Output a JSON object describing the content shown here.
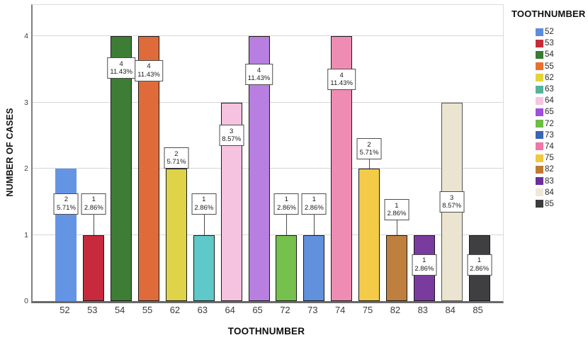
{
  "chart_data": {
    "type": "bar",
    "title": "",
    "xlabel": "TOOTHNUMBER",
    "ylabel": "NUMBER OF CASES",
    "ylim": [
      0,
      4.47
    ],
    "yticks": [
      "0",
      "1",
      "2",
      "3",
      "4"
    ],
    "grid": true,
    "legend": {
      "title": "TOOTHNUMBER",
      "position": "right"
    },
    "categories": [
      "52",
      "53",
      "54",
      "55",
      "62",
      "63",
      "64",
      "65",
      "72",
      "73",
      "74",
      "75",
      "82",
      "83",
      "84",
      "85"
    ],
    "values": [
      2,
      1,
      4,
      4,
      2,
      1,
      3,
      4,
      1,
      1,
      4,
      2,
      1,
      1,
      3,
      1
    ],
    "bars": [
      {
        "tooth": "52",
        "cases": 2,
        "count_label": "2",
        "percent_label": "5.71%",
        "bar_color": "#6494E4",
        "border_color": "#6494E4",
        "legend_color": "#5C8CE0",
        "label_y": 1.47
      },
      {
        "tooth": "53",
        "cases": 1,
        "count_label": "1",
        "percent_label": "2.86%",
        "bar_color": "#C62A3C",
        "border_color": "#1a1a1a",
        "legend_color": "#C62A3B",
        "label_y": 1.47
      },
      {
        "tooth": "54",
        "cases": 4,
        "count_label": "4",
        "percent_label": "11.43%",
        "bar_color": "#3E7D36",
        "border_color": "#1a1a1a",
        "legend_color": "#3B7A33",
        "label_y": 3.52
      },
      {
        "tooth": "55",
        "cases": 4,
        "count_label": "4",
        "percent_label": "11.43%",
        "bar_color": "#E06B3A",
        "border_color": "#1a1a1a",
        "legend_color": "#E8702E",
        "label_y": 3.48
      },
      {
        "tooth": "62",
        "cases": 2,
        "count_label": "2",
        "percent_label": "5.71%",
        "bar_color": "#DFD34A",
        "border_color": "#1a1a1a",
        "legend_color": "#E5D33A",
        "label_y": 2.16
      },
      {
        "tooth": "63",
        "cases": 1,
        "count_label": "1",
        "percent_label": "2.86%",
        "bar_color": "#5FC8C8",
        "border_color": "#1a1a1a",
        "legend_color": "#55B39C",
        "label_y": 1.47
      },
      {
        "tooth": "64",
        "cases": 3,
        "count_label": "3",
        "percent_label": "8.57%",
        "bar_color": "#F5C2DF",
        "border_color": "#1a1a1a",
        "legend_color": "#F6C6E0",
        "label_y": 2.5
      },
      {
        "tooth": "65",
        "cases": 4,
        "count_label": "4",
        "percent_label": "11.43%",
        "bar_color": "#B87FE0",
        "border_color": "#1a1a1a",
        "legend_color": "#A14DE0",
        "label_y": 3.42
      },
      {
        "tooth": "72",
        "cases": 1,
        "count_label": "1",
        "percent_label": "2.86%",
        "bar_color": "#76C04E",
        "border_color": "#1a1a1a",
        "legend_color": "#6CBE44",
        "label_y": 1.47
      },
      {
        "tooth": "73",
        "cases": 1,
        "count_label": "1",
        "percent_label": "2.86%",
        "bar_color": "#6190DC",
        "border_color": "#1a1a1a",
        "legend_color": "#3C64B4",
        "label_y": 1.47
      },
      {
        "tooth": "74",
        "cases": 4,
        "count_label": "4",
        "percent_label": "11.43%",
        "bar_color": "#EF8CB4",
        "border_color": "#1a1a1a",
        "legend_color": "#F075A8",
        "label_y": 3.35
      },
      {
        "tooth": "75",
        "cases": 2,
        "count_label": "2",
        "percent_label": "5.71%",
        "bar_color": "#F4CB48",
        "border_color": "#1a1a1a",
        "legend_color": "#F2C83C",
        "label_y": 2.3
      },
      {
        "tooth": "82",
        "cases": 1,
        "count_label": "1",
        "percent_label": "2.86%",
        "bar_color": "#BE7F3F",
        "border_color": "#1a1a1a",
        "legend_color": "#BE7B33",
        "label_y": 1.38
      },
      {
        "tooth": "83",
        "cases": 1,
        "count_label": "1",
        "percent_label": "2.86%",
        "bar_color": "#7A3B9E",
        "border_color": "#1a1a1a",
        "legend_color": "#6A2E9E",
        "label_y": 0.55
      },
      {
        "tooth": "84",
        "cases": 3,
        "count_label": "3",
        "percent_label": "8.57%",
        "bar_color": "#EAE4D0",
        "border_color": "#555555",
        "legend_color": "#EDE8D8",
        "label_y": 1.5
      },
      {
        "tooth": "85",
        "cases": 1,
        "count_label": "1",
        "percent_label": "2.86%",
        "bar_color": "#3F3F41",
        "border_color": "#1a1a1a",
        "legend_color": "#3C3C3C",
        "label_y": 0.55
      }
    ]
  }
}
